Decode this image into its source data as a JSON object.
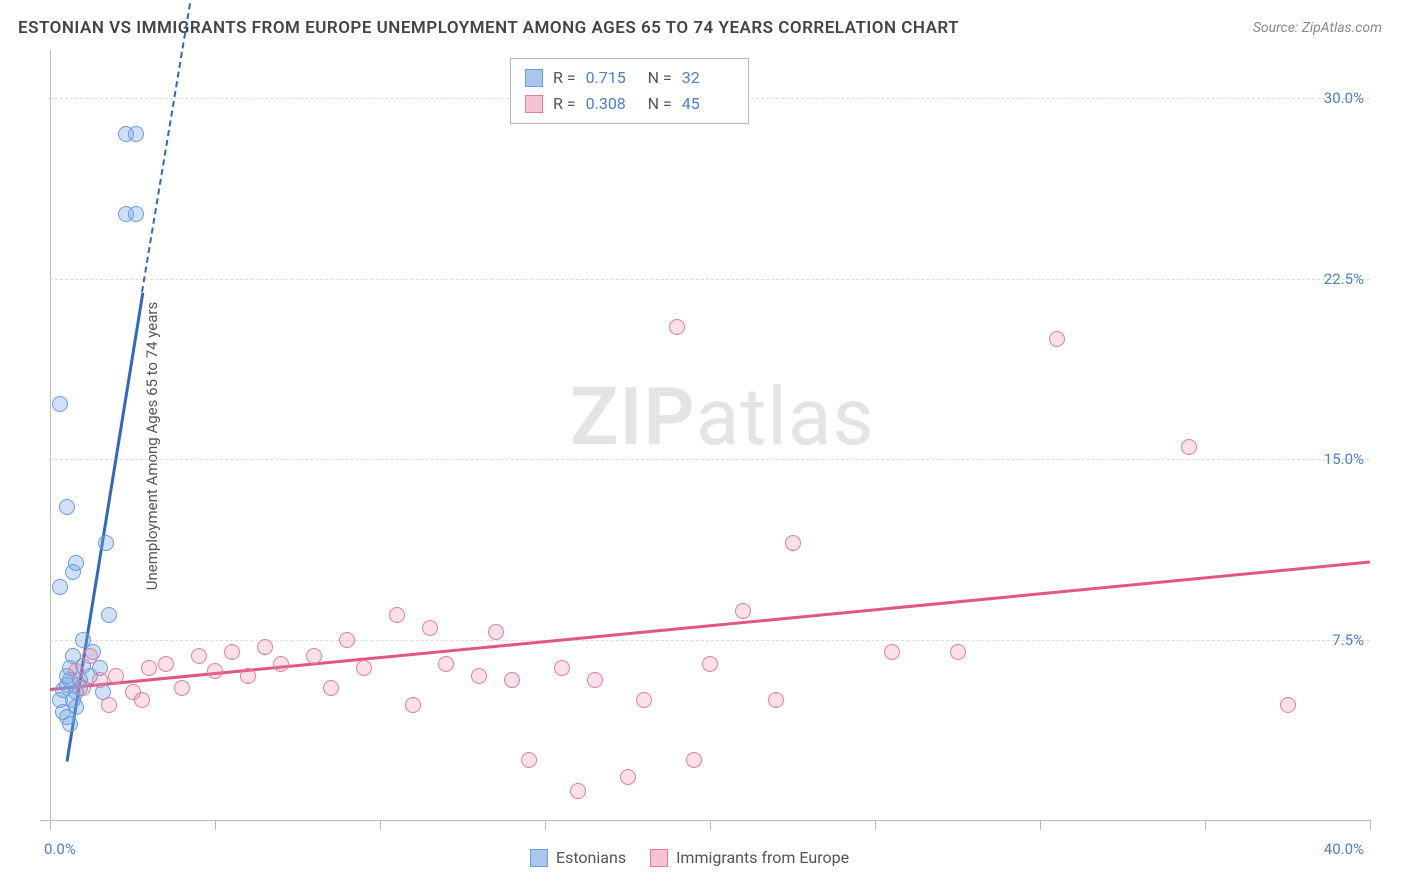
{
  "title": "ESTONIAN VS IMMIGRANTS FROM EUROPE UNEMPLOYMENT AMONG AGES 65 TO 74 YEARS CORRELATION CHART",
  "source": "Source: ZipAtlas.com",
  "y_axis_label": "Unemployment Among Ages 65 to 74 years",
  "watermark": "ZIPatlas",
  "chart": {
    "type": "scatter",
    "xlim": [
      0,
      40
    ],
    "ylim": [
      0,
      32
    ],
    "x_min_label": "0.0%",
    "x_max_label": "40.0%",
    "y_ticks": [
      7.5,
      15.0,
      22.5,
      30.0
    ],
    "y_tick_labels": [
      "7.5%",
      "15.0%",
      "22.5%",
      "30.0%"
    ],
    "x_tick_positions": [
      0,
      5,
      10,
      15,
      20,
      25,
      30,
      35,
      40
    ],
    "grid_color": "#dddddd",
    "axis_color": "#bbbbbb",
    "background_color": "#ffffff",
    "series": [
      {
        "name": "Estonians",
        "color_fill": "rgba(120,165,225,0.35)",
        "color_stroke": "#6a9de0",
        "marker_size": 16,
        "r_value": "0.715",
        "n_value": "32",
        "trend": {
          "x1": 0.5,
          "y1": 2.5,
          "x2": 2.8,
          "y2": 22.0,
          "color": "#2e67c7",
          "width": 3,
          "dash_x2": 4.5,
          "dash_y2": 36.0
        },
        "points": [
          [
            0.3,
            5.0
          ],
          [
            0.4,
            5.4
          ],
          [
            0.5,
            5.6
          ],
          [
            0.6,
            5.8
          ],
          [
            0.5,
            6.0
          ],
          [
            0.8,
            5.3
          ],
          [
            0.9,
            5.5
          ],
          [
            0.6,
            6.3
          ],
          [
            0.7,
            6.8
          ],
          [
            1.0,
            7.5
          ],
          [
            1.3,
            7.0
          ],
          [
            0.5,
            4.3
          ],
          [
            0.6,
            4.0
          ],
          [
            0.4,
            4.5
          ],
          [
            1.5,
            6.3
          ],
          [
            1.6,
            5.3
          ],
          [
            1.8,
            8.5
          ],
          [
            0.3,
            9.7
          ],
          [
            0.7,
            10.3
          ],
          [
            0.8,
            10.7
          ],
          [
            0.5,
            13.0
          ],
          [
            1.7,
            11.5
          ],
          [
            0.3,
            17.3
          ],
          [
            2.3,
            28.5
          ],
          [
            2.6,
            28.5
          ],
          [
            2.3,
            25.2
          ],
          [
            2.6,
            25.2
          ],
          [
            0.9,
            5.8
          ],
          [
            1.2,
            6.0
          ],
          [
            1.0,
            6.4
          ],
          [
            0.7,
            5.0
          ],
          [
            0.8,
            4.7
          ]
        ]
      },
      {
        "name": "Immigrants from Europe",
        "color_fill": "rgba(240,130,160,0.25)",
        "color_stroke": "#e97ba0",
        "marker_size": 16,
        "r_value": "0.308",
        "n_value": "45",
        "trend": {
          "x1": 0.0,
          "y1": 5.5,
          "x2": 40.0,
          "y2": 10.8,
          "color": "#e2577f",
          "width": 3
        },
        "points": [
          [
            1.0,
            5.5
          ],
          [
            1.5,
            5.8
          ],
          [
            2.0,
            6.0
          ],
          [
            2.5,
            5.3
          ],
          [
            3.0,
            6.3
          ],
          [
            3.5,
            6.5
          ],
          [
            4.0,
            5.5
          ],
          [
            4.5,
            6.8
          ],
          [
            5.0,
            6.2
          ],
          [
            5.5,
            7.0
          ],
          [
            6.0,
            6.0
          ],
          [
            6.5,
            7.2
          ],
          [
            7.0,
            6.5
          ],
          [
            8.0,
            6.8
          ],
          [
            8.5,
            5.5
          ],
          [
            9.0,
            7.5
          ],
          [
            9.5,
            6.3
          ],
          [
            10.5,
            8.5
          ],
          [
            11.0,
            4.8
          ],
          [
            11.5,
            8.0
          ],
          [
            12.0,
            6.5
          ],
          [
            13.0,
            6.0
          ],
          [
            13.5,
            7.8
          ],
          [
            14.0,
            5.8
          ],
          [
            14.5,
            2.5
          ],
          [
            15.5,
            6.3
          ],
          [
            16.0,
            1.2
          ],
          [
            16.5,
            5.8
          ],
          [
            17.5,
            1.8
          ],
          [
            18.0,
            5.0
          ],
          [
            19.0,
            20.5
          ],
          [
            19.5,
            2.5
          ],
          [
            20.0,
            6.5
          ],
          [
            21.0,
            8.7
          ],
          [
            22.0,
            5.0
          ],
          [
            22.5,
            11.5
          ],
          [
            25.5,
            7.0
          ],
          [
            27.5,
            7.0
          ],
          [
            30.5,
            20.0
          ],
          [
            34.5,
            15.5
          ],
          [
            37.5,
            4.8
          ],
          [
            1.8,
            4.8
          ],
          [
            2.8,
            5.0
          ],
          [
            0.8,
            6.2
          ],
          [
            1.2,
            6.8
          ]
        ]
      }
    ]
  },
  "stats_box": {
    "rows": [
      {
        "swatch_fill": "#a9c6ec",
        "swatch_border": "#6a9de0",
        "r_label": "R  =",
        "r_val": "0.715",
        "n_label": "N  =",
        "n_val": "32"
      },
      {
        "swatch_fill": "#f5c3d2",
        "swatch_border": "#e97ba0",
        "r_label": "R  =",
        "r_val": "0.308",
        "n_label": "N  =",
        "n_val": "45"
      }
    ]
  },
  "legend": [
    {
      "swatch_fill": "#a9c6ec",
      "swatch_border": "#6a9de0",
      "label": "Estonians"
    },
    {
      "swatch_fill": "#f5c3d2",
      "swatch_border": "#e97ba0",
      "label": "Immigrants from Europe"
    }
  ]
}
